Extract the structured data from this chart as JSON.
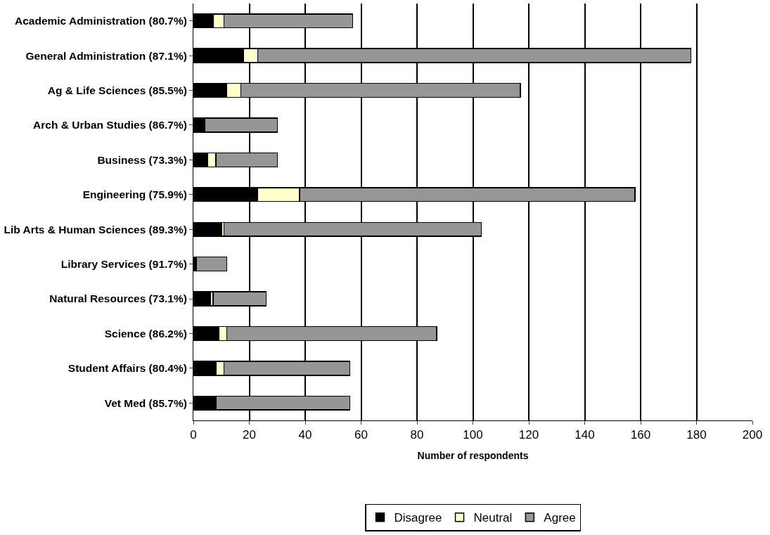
{
  "chart_data": {
    "type": "bar",
    "orientation": "horizontal",
    "stacked": true,
    "xlabel": "Number of respondents",
    "categories": [
      "Academic Administration (80.7%)",
      "General Administration (87.1%)",
      "Ag & Life Sciences (85.5%)",
      "Arch & Urban Studies (86.7%)",
      "Business (73.3%)",
      "Engineering (75.9%)",
      "Lib Arts & Human Sciences (89.3%)",
      "Library Services (91.7%)",
      "Natural Resources (73.1%)",
      "Science (86.2%)",
      "Student Affairs (80.4%)",
      "Vet Med (85.7%)"
    ],
    "series": [
      {
        "name": "Disagree",
        "color": "#000000",
        "values": [
          7,
          18,
          12,
          4,
          5,
          23,
          10,
          1,
          6,
          9,
          8,
          8
        ]
      },
      {
        "name": "Neutral",
        "color": "#ffffcc",
        "values": [
          4,
          5,
          5,
          0,
          3,
          15,
          1,
          0,
          1,
          3,
          3,
          0
        ]
      },
      {
        "name": "Agree",
        "color": "#969696",
        "values": [
          46,
          155,
          100,
          26,
          22,
          120,
          92,
          11,
          19,
          75,
          45,
          48
        ]
      }
    ],
    "xlim": [
      0,
      200
    ],
    "xticks": [
      0,
      20,
      40,
      60,
      80,
      100,
      120,
      140,
      160,
      180,
      200
    ],
    "grid": "x",
    "legend": "bottom"
  }
}
